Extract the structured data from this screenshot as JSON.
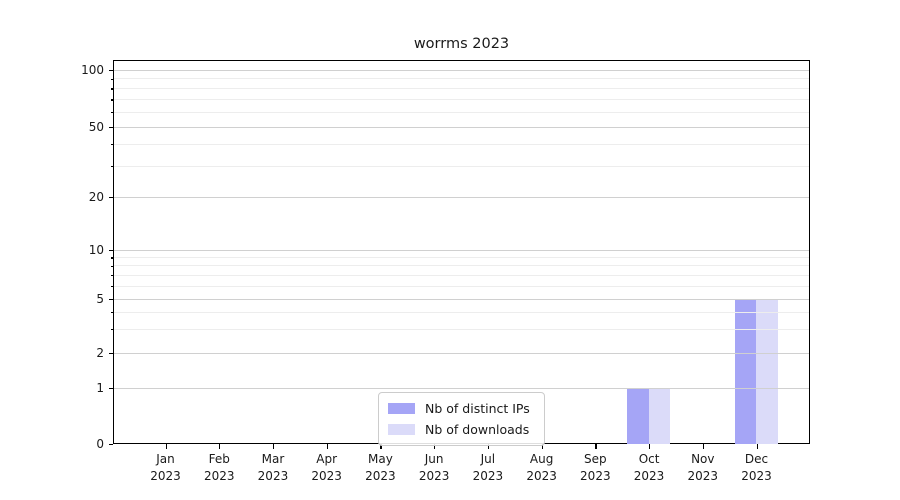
{
  "chart_data": {
    "type": "bar",
    "title": "worrms 2023",
    "x_labels": [
      {
        "month": "Jan",
        "year": "2023"
      },
      {
        "month": "Feb",
        "year": "2023"
      },
      {
        "month": "Mar",
        "year": "2023"
      },
      {
        "month": "Apr",
        "year": "2023"
      },
      {
        "month": "May",
        "year": "2023"
      },
      {
        "month": "Jun",
        "year": "2023"
      },
      {
        "month": "Jul",
        "year": "2023"
      },
      {
        "month": "Aug",
        "year": "2023"
      },
      {
        "month": "Sep",
        "year": "2023"
      },
      {
        "month": "Oct",
        "year": "2023"
      },
      {
        "month": "Nov",
        "year": "2023"
      },
      {
        "month": "Dec",
        "year": "2023"
      }
    ],
    "series": [
      {
        "name": "Nb of distinct IPs",
        "color": "#a5a5f6",
        "values": [
          0,
          0,
          0,
          0,
          0,
          0,
          0,
          0,
          0,
          1,
          0,
          5
        ]
      },
      {
        "name": "Nb of downloads",
        "color": "#dbdbf9",
        "values": [
          0,
          0,
          0,
          0,
          0,
          0,
          0,
          0,
          0,
          1,
          0,
          5
        ]
      }
    ],
    "y_axis": {
      "scale": "symlog",
      "major_ticks": [
        0,
        1,
        2,
        5,
        10,
        20,
        50,
        100
      ],
      "minor_ticks": [
        3,
        4,
        6,
        7,
        8,
        9,
        30,
        40,
        60,
        70,
        80,
        90
      ]
    },
    "grid": true,
    "legend": {
      "position": "lower center"
    }
  },
  "colors": {
    "major_grid": "#d0d0d0",
    "minor_grid": "#ededed",
    "axis": "#000000",
    "text": "#1a1a1a"
  }
}
